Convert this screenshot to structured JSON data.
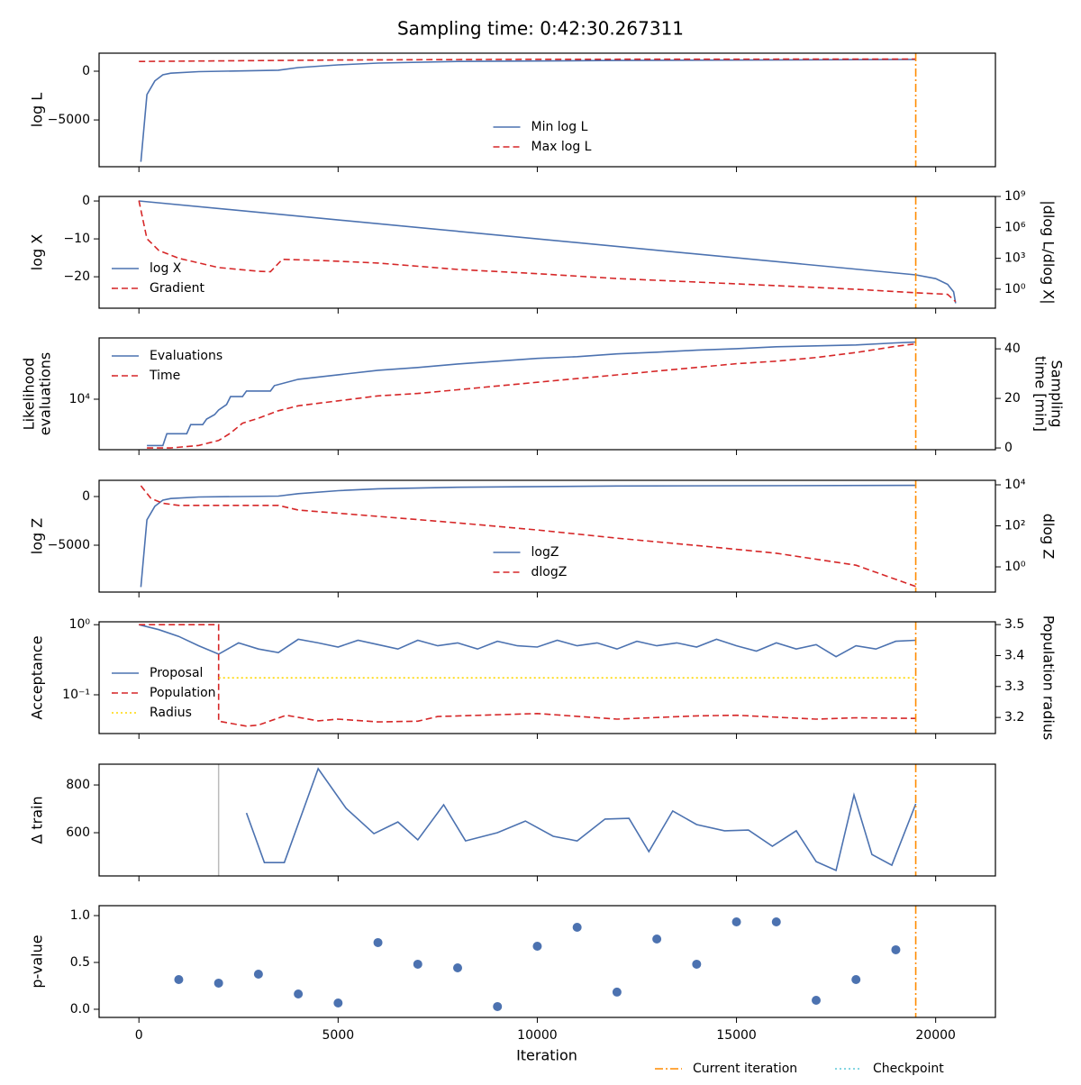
{
  "title": "Sampling time: 0:42:30.267311",
  "x_axis": {
    "label": "Iteration",
    "xlim": [
      -1000,
      21500
    ],
    "xticks": [
      0,
      5000,
      10000,
      15000,
      20000
    ]
  },
  "legend": {
    "position": "lower right",
    "entries": [
      {
        "name": "Current iteration",
        "color": "#ff8c00",
        "style": "dashdot",
        "x": 19500
      },
      {
        "name": "Checkpoint",
        "color": "#5bc8d8",
        "style": "dotted"
      }
    ]
  },
  "chart_data": [
    {
      "type": "line",
      "ylabel": "log L",
      "ylim": [
        -9800,
        1850
      ],
      "yticks": [
        0,
        {
          "value": -5000,
          "label": "−5000"
        }
      ],
      "legend": "lower center",
      "series": [
        {
          "name": "Min log L",
          "color": "#4c72b0",
          "style": "solid",
          "x": [
            50,
            200,
            400,
            600,
            800,
            1500,
            3500,
            4000,
            5000,
            6000,
            8000,
            12000,
            19500
          ],
          "values": [
            -9300,
            -2400,
            -1000,
            -370,
            -200,
            -50,
            100,
            370,
            650,
            830,
            1000,
            1100,
            1200
          ]
        },
        {
          "name": "Max log L",
          "color": "#d62728",
          "style": "dashed",
          "x": [
            0,
            5000,
            10000,
            19500
          ],
          "values": [
            1000,
            1150,
            1220,
            1250
          ]
        }
      ]
    },
    {
      "type": "line",
      "ylabel": "log X",
      "ylim": [
        -28.3,
        1.2
      ],
      "yticks": [
        0,
        {
          "value": -10,
          "label": "−10"
        },
        {
          "value": -20,
          "label": "−20"
        }
      ],
      "y2label": "|dlog L/dlog X|",
      "y2log": true,
      "y2lim": [
        0.0145,
        1000000000
      ],
      "y2ticks": [
        {
          "value": 1000000000,
          "label": "10⁹"
        },
        {
          "value": 1000000,
          "label": "10⁶"
        },
        {
          "value": 1000,
          "label": "10³"
        },
        {
          "value": 1,
          "label": "10⁰"
        }
      ],
      "legend": "lower left",
      "series": [
        {
          "name": "log X",
          "color": "#4c72b0",
          "style": "solid",
          "x": [
            0,
            19500,
            20000,
            20300,
            20450,
            20500
          ],
          "values": [
            0,
            -19.5,
            -20.5,
            -22,
            -24,
            -27
          ]
        },
        {
          "name": "Gradient",
          "color": "#d62728",
          "style": "dashed",
          "axis": "y2",
          "x": [
            0,
            200,
            500,
            1000,
            2000,
            3000,
            3300,
            3600,
            4500,
            6000,
            8000,
            10000,
            12000,
            14000,
            16000,
            18000,
            19500,
            20300,
            20500
          ],
          "values": [
            400000000,
            80000,
            5800,
            1000,
            126,
            56,
            50,
            800,
            630,
            350,
            83,
            32,
            11,
            5,
            2.2,
            1,
            0.45,
            0.32,
            0.063
          ]
        }
      ]
    },
    {
      "type": "line",
      "ylabel": [
        "Likelihood",
        "evaluations"
      ],
      "ylog": true,
      "ylim": [
        4700,
        25000
      ],
      "yticks": [
        {
          "value": 10000,
          "label": "10⁴"
        }
      ],
      "y2label": [
        "Sampling",
        "time [min]"
      ],
      "y2lim": [
        -0.7,
        44.4
      ],
      "y2ticks": [
        0,
        20,
        40
      ],
      "legend": "upper left",
      "series": [
        {
          "name": "Evaluations",
          "color": "#4c72b0",
          "style": "solid",
          "x": [
            200,
            600,
            700,
            1200,
            1300,
            1600,
            1700,
            1900,
            2000,
            2200,
            2300,
            2600,
            2700,
            3300,
            3400,
            4000,
            5000,
            6000,
            7000,
            8000,
            9000,
            10000,
            11000,
            12000,
            13000,
            14000,
            15000,
            16000,
            17000,
            18000,
            19000,
            19500
          ],
          "values": [
            5000,
            5000,
            5970,
            5970,
            6840,
            6840,
            7430,
            7940,
            8500,
            9230,
            10400,
            10400,
            11300,
            11300,
            12250,
            13460,
            14400,
            15400,
            16070,
            16940,
            17660,
            18400,
            18900,
            19700,
            20200,
            20800,
            21300,
            21900,
            22200,
            22500,
            23200,
            23500
          ]
        },
        {
          "name": "Time",
          "color": "#d62728",
          "style": "dashed",
          "axis": "y2",
          "x": [
            200,
            800,
            1500,
            2000,
            2300,
            2600,
            3000,
            3500,
            4000,
            5000,
            6000,
            7000,
            8000,
            9000,
            10000,
            11000,
            12000,
            13000,
            14000,
            15000,
            16000,
            17000,
            18000,
            19000,
            19500
          ],
          "values": [
            0,
            0,
            1,
            3,
            6,
            10,
            12,
            15,
            17,
            19,
            21,
            22,
            23.5,
            25,
            26.5,
            28,
            29.5,
            31,
            32.5,
            34,
            35,
            36.5,
            38.5,
            41,
            42
          ]
        }
      ]
    },
    {
      "type": "line",
      "ylabel": "log Z",
      "ylim": [
        -9815,
        1667
      ],
      "yticks": [
        0,
        {
          "value": -5000,
          "label": "−5000"
        }
      ],
      "y2label": "dlog Z",
      "y2log": true,
      "y2lim": [
        0.059,
        16600
      ],
      "y2ticks": [
        {
          "value": 10000,
          "label": "10⁴"
        },
        {
          "value": 100,
          "label": "10²"
        },
        {
          "value": 1,
          "label": "10⁰"
        }
      ],
      "legend": "lower center",
      "series": [
        {
          "name": "logZ",
          "color": "#4c72b0",
          "style": "solid",
          "x": [
            50,
            200,
            400,
            600,
            800,
            1500,
            3500,
            4000,
            5000,
            6000,
            8000,
            12000,
            19500
          ],
          "values": [
            -9300,
            -2400,
            -1000,
            -370,
            -200,
            -50,
            50,
            300,
            600,
            800,
            950,
            1080,
            1150
          ]
        },
        {
          "name": "dlogZ",
          "color": "#d62728",
          "style": "dashed",
          "axis": "y2",
          "x": [
            50,
            300,
            600,
            1000,
            3500,
            4000,
            6000,
            8000,
            10000,
            12000,
            14000,
            16000,
            18000,
            19500
          ],
          "values": [
            9000,
            2200,
            1260,
            1000,
            1000,
            590,
            290,
            140,
            63,
            25,
            11,
            4.6,
            1.2,
            0.11
          ]
        }
      ]
    },
    {
      "type": "line",
      "ylabel": "Acceptance",
      "ylog": true,
      "ylim": [
        0.028,
        1.1
      ],
      "yticks": [
        {
          "value": 1,
          "label": "10⁰"
        },
        {
          "value": 0.1,
          "label": "10⁻¹"
        }
      ],
      "y2label": "Population radius",
      "y2lim": [
        3.148,
        3.509
      ],
      "y2ticks": [
        3.2,
        3.3,
        3.4,
        3.5
      ],
      "legend": "center left",
      "series": [
        {
          "name": "Proposal",
          "color": "#4c72b0",
          "style": "solid",
          "x": [
            0,
            500,
            1000,
            1500,
            2000,
            2500,
            3000,
            3500,
            4000,
            4500,
            5000,
            5500,
            6000,
            6500,
            7000,
            7500,
            8000,
            8500,
            9000,
            9500,
            10000,
            10500,
            11000,
            11500,
            12000,
            12500,
            13000,
            13500,
            14000,
            14500,
            15000,
            15500,
            16000,
            16500,
            17000,
            17500,
            18000,
            18500,
            19000,
            19500
          ],
          "values": [
            1.0,
            0.85,
            0.68,
            0.5,
            0.38,
            0.55,
            0.45,
            0.4,
            0.62,
            0.55,
            0.48,
            0.6,
            0.52,
            0.45,
            0.6,
            0.5,
            0.55,
            0.45,
            0.58,
            0.5,
            0.48,
            0.6,
            0.5,
            0.55,
            0.45,
            0.58,
            0.5,
            0.55,
            0.48,
            0.62,
            0.5,
            0.42,
            0.55,
            0.45,
            0.52,
            0.35,
            0.5,
            0.45,
            0.58,
            0.6
          ]
        },
        {
          "name": "Population",
          "color": "#d62728",
          "style": "dashed",
          "x": [
            0,
            2000,
            2001,
            2700,
            3000,
            3700,
            4500,
            5000,
            6000,
            7000,
            7500,
            10000,
            12000,
            14000,
            15000,
            17000,
            18000,
            19500
          ],
          "values": [
            1.0,
            1.0,
            0.042,
            0.0357,
            0.037,
            0.051,
            0.0425,
            0.045,
            0.041,
            0.042,
            0.049,
            0.054,
            0.045,
            0.05,
            0.051,
            0.045,
            0.047,
            0.046
          ]
        },
        {
          "name": "Radius",
          "color": "#ffd700",
          "style": "dotted",
          "axis": "y2",
          "x": [
            2000,
            19500
          ],
          "values": [
            3.328,
            3.328
          ]
        }
      ]
    },
    {
      "type": "line",
      "ylabel": "Δ train",
      "ylim": [
        419,
        887
      ],
      "yticks": [
        600,
        800
      ],
      "reference_x": 2000,
      "series": [
        {
          "color": "#4c72b0",
          "style": "solid",
          "x": [
            2700,
            3150,
            3650,
            4500,
            5200,
            5900,
            6500,
            7000,
            7650,
            8200,
            9000,
            9700,
            10400,
            11000,
            11700,
            12300,
            12800,
            13400,
            14000,
            14700,
            15300,
            15900,
            16500,
            17000,
            17500,
            17950,
            18400,
            18900,
            19500
          ],
          "values": [
            683,
            475,
            475,
            868,
            702,
            596,
            645,
            570,
            717,
            566,
            600,
            649,
            585,
            566,
            657,
            660,
            521,
            691,
            634,
            608,
            611,
            543,
            608,
            479,
            442,
            758,
            509,
            464,
            721
          ]
        }
      ]
    },
    {
      "type": "scatter",
      "ylabel": "p-value",
      "ylim": [
        -0.087,
        1.106
      ],
      "yticks": [
        {
          "value": 0,
          "label": "0.0"
        },
        0.5,
        {
          "value": 1,
          "label": "1.0"
        }
      ],
      "series": [
        {
          "color": "#4c72b0",
          "x": [
            1000,
            2000,
            3000,
            4000,
            5000,
            6000,
            7000,
            8000,
            9000,
            10000,
            11000,
            12000,
            13000,
            14000,
            15000,
            16000,
            17000,
            18000,
            19000
          ],
          "values": [
            0.317,
            0.279,
            0.375,
            0.163,
            0.067,
            0.712,
            0.481,
            0.442,
            0.029,
            0.673,
            0.875,
            0.183,
            0.75,
            0.481,
            0.933,
            0.933,
            0.096,
            0.317,
            0.635
          ]
        }
      ]
    }
  ]
}
